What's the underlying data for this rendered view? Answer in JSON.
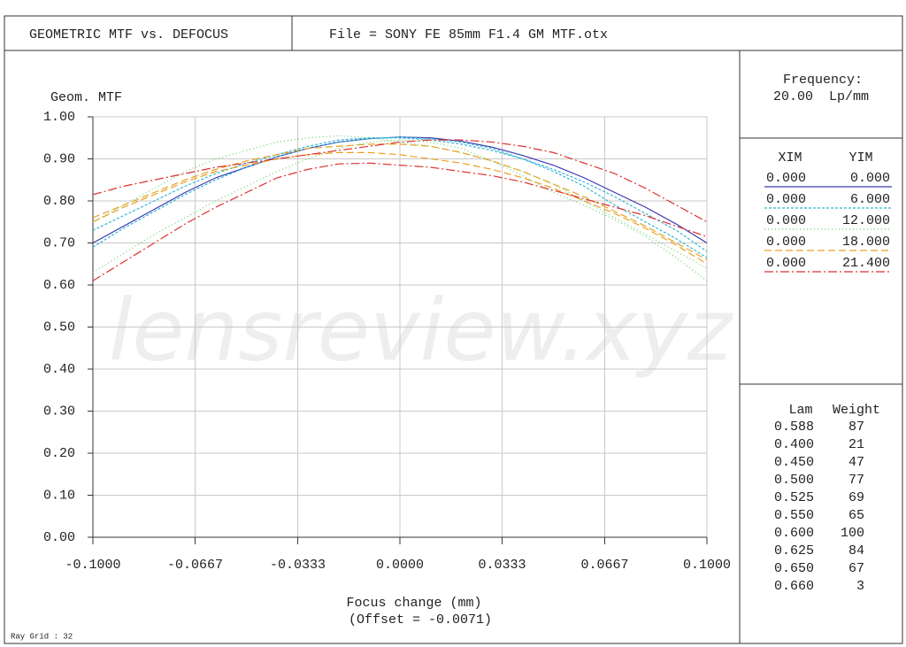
{
  "header": {
    "title": "GEOMETRIC MTF vs. DEFOCUS",
    "file": "File = SONY FE 85mm F1.4 GM MTF.otx"
  },
  "frequency": {
    "label": "Frequency:",
    "value": "20.00  Lp/mm"
  },
  "fields": {
    "columns": [
      "XIM",
      "YIM"
    ],
    "rows": [
      [
        "0.000",
        "0.000"
      ],
      [
        "0.000",
        "6.000"
      ],
      [
        "0.000",
        "12.000"
      ],
      [
        "0.000",
        "18.000"
      ],
      [
        "0.000",
        "21.400"
      ]
    ]
  },
  "wavelengths": {
    "columns": [
      "Lam",
      "Weight"
    ],
    "rows": [
      [
        "0.588",
        "87"
      ],
      [
        "0.400",
        "21"
      ],
      [
        "0.450",
        "47"
      ],
      [
        "0.500",
        "77"
      ],
      [
        "0.525",
        "69"
      ],
      [
        "0.550",
        "65"
      ],
      [
        "0.600",
        "100"
      ],
      [
        "0.625",
        "84"
      ],
      [
        "0.650",
        "67"
      ],
      [
        "0.660",
        "3"
      ]
    ]
  },
  "footer": "Ray Grid : 32",
  "watermark": "lensreview.xyz",
  "chart_data": {
    "type": "line",
    "y_label": "Geom. MTF",
    "x_label": "Focus change (mm)",
    "x_sublabel": "(Offset = -0.0071)",
    "x": [
      -0.1,
      -0.09,
      -0.08,
      -0.07,
      -0.06,
      -0.05,
      -0.04,
      -0.03,
      -0.02,
      -0.01,
      0,
      0.01,
      0.02,
      0.03,
      0.04,
      0.05,
      0.06,
      0.07,
      0.08,
      0.09,
      0.1
    ],
    "xlim": [
      -0.1,
      0.1
    ],
    "xticks": [
      {
        "value": -0.1,
        "label": "-0.1000"
      },
      {
        "value": -0.0667,
        "label": "-0.0667"
      },
      {
        "value": -0.0333,
        "label": "-0.0333"
      },
      {
        "value": 0,
        "label": "0.0000"
      },
      {
        "value": 0.0333,
        "label": "0.0333"
      },
      {
        "value": 0.0667,
        "label": "0.0667"
      },
      {
        "value": 0.1,
        "label": "0.1000"
      }
    ],
    "ylim": [
      0,
      1
    ],
    "yticks": [
      {
        "value": 0,
        "label": "0.00"
      },
      {
        "value": 0.1,
        "label": "0.10"
      },
      {
        "value": 0.2,
        "label": "0.20"
      },
      {
        "value": 0.3,
        "label": "0.30"
      },
      {
        "value": 0.4,
        "label": "0.40"
      },
      {
        "value": 0.5,
        "label": "0.50"
      },
      {
        "value": 0.6,
        "label": "0.60"
      },
      {
        "value": 0.7,
        "label": "0.70"
      },
      {
        "value": 0.8,
        "label": "0.80"
      },
      {
        "value": 0.9,
        "label": "0.90"
      },
      {
        "value": 1,
        "label": "1.00"
      }
    ],
    "grid": true,
    "legend_styles": [
      {
        "color": "#3a3ab0",
        "dash": "none"
      },
      {
        "color": "#33b5d6",
        "dash": "3,2"
      },
      {
        "color": "#66d066",
        "dash": "1,3"
      },
      {
        "color": "#e8a020",
        "dash": "8,4"
      },
      {
        "color": "#dd3333",
        "dash": "10,3,2,3"
      }
    ],
    "series": [
      {
        "color": "#3a3ab0",
        "dash": "none",
        "values": [
          0.7,
          0.74,
          0.78,
          0.82,
          0.855,
          0.88,
          0.905,
          0.925,
          0.94,
          0.948,
          0.952,
          0.95,
          0.942,
          0.928,
          0.908,
          0.885,
          0.855,
          0.82,
          0.785,
          0.745,
          0.7
        ]
      },
      {
        "color": "#33b5d6",
        "dash": "3,2",
        "values": [
          0.73,
          0.765,
          0.8,
          0.835,
          0.865,
          0.89,
          0.91,
          0.93,
          0.945,
          0.95,
          0.95,
          0.945,
          0.935,
          0.92,
          0.9,
          0.875,
          0.845,
          0.81,
          0.77,
          0.73,
          0.68
        ]
      },
      {
        "color": "#33b5d6",
        "dash": "3,2",
        "values": [
          0.69,
          0.735,
          0.775,
          0.815,
          0.85,
          0.88,
          0.905,
          0.925,
          0.94,
          0.948,
          0.952,
          0.948,
          0.94,
          0.925,
          0.9,
          0.87,
          0.835,
          0.79,
          0.75,
          0.71,
          0.665
        ]
      },
      {
        "color": "#66d066",
        "dash": "1,3",
        "values": [
          0.63,
          0.675,
          0.72,
          0.76,
          0.8,
          0.835,
          0.87,
          0.9,
          0.925,
          0.94,
          0.945,
          0.94,
          0.925,
          0.895,
          0.86,
          0.82,
          0.79,
          0.755,
          0.715,
          0.665,
          0.61
        ]
      },
      {
        "color": "#66d066",
        "dash": "1,3",
        "values": [
          0.75,
          0.79,
          0.83,
          0.87,
          0.9,
          0.92,
          0.94,
          0.95,
          0.955,
          0.95,
          0.94,
          0.93,
          0.915,
          0.895,
          0.87,
          0.84,
          0.8,
          0.76,
          0.72,
          0.68,
          0.64
        ]
      },
      {
        "color": "#e8a020",
        "dash": "8,4",
        "values": [
          0.75,
          0.785,
          0.815,
          0.845,
          0.87,
          0.885,
          0.9,
          0.91,
          0.915,
          0.915,
          0.91,
          0.9,
          0.89,
          0.875,
          0.855,
          0.83,
          0.8,
          0.77,
          0.735,
          0.695,
          0.65
        ]
      },
      {
        "color": "#e8a020",
        "dash": "8,4",
        "values": [
          0.76,
          0.79,
          0.82,
          0.85,
          0.875,
          0.895,
          0.91,
          0.925,
          0.93,
          0.935,
          0.935,
          0.93,
          0.915,
          0.895,
          0.87,
          0.84,
          0.81,
          0.775,
          0.74,
          0.7,
          0.66
        ]
      },
      {
        "color": "#dd3333",
        "dash": "10,3,2,3",
        "values": [
          0.815,
          0.835,
          0.85,
          0.865,
          0.88,
          0.89,
          0.9,
          0.91,
          0.92,
          0.93,
          0.94,
          0.945,
          0.945,
          0.94,
          0.93,
          0.915,
          0.89,
          0.865,
          0.83,
          0.79,
          0.75
        ]
      },
      {
        "color": "#dd3333",
        "dash": "10,3,2,3",
        "values": [
          0.61,
          0.655,
          0.7,
          0.745,
          0.785,
          0.82,
          0.855,
          0.875,
          0.888,
          0.89,
          0.885,
          0.88,
          0.87,
          0.86,
          0.845,
          0.825,
          0.805,
          0.785,
          0.765,
          0.74,
          0.715
        ]
      }
    ]
  }
}
